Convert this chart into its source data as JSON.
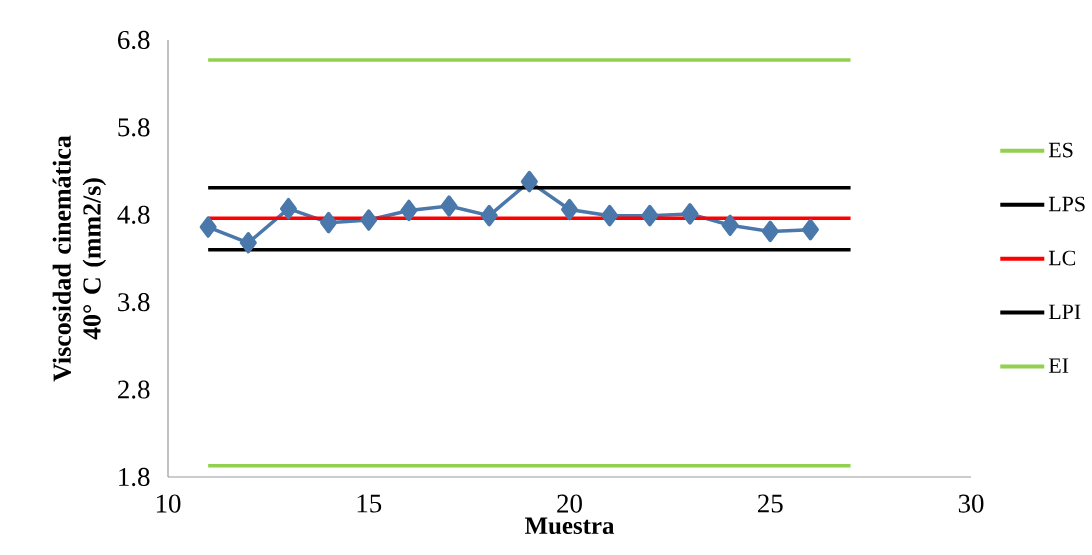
{
  "chart_data": {
    "type": "line",
    "xlabel": "Muestra",
    "ylabel": "Viscosidad cinemática 40° C (mm2/s)",
    "xlim": [
      10,
      30
    ],
    "xticks": [
      10,
      15,
      20,
      25,
      30
    ],
    "ylim": [
      1.8,
      6.8
    ],
    "yticks": [
      1.8,
      2.8,
      3.8,
      4.8,
      5.8,
      6.8
    ],
    "grid": false,
    "legend": "right",
    "line_style": "solid",
    "series": [
      {
        "color": "#4a78ab",
        "marker": "diamond",
        "x": [
          11,
          12,
          13,
          14,
          15,
          16,
          17,
          18,
          19,
          20,
          21,
          22,
          23,
          24,
          25,
          26
        ],
        "values": [
          4.66,
          4.48,
          4.87,
          4.71,
          4.74,
          4.85,
          4.9,
          4.79,
          5.18,
          4.86,
          4.79,
          4.79,
          4.81,
          4.68,
          4.61,
          4.63
        ]
      },
      {
        "name": "ES",
        "color": "#92d050",
        "marker": "none",
        "x": [
          11,
          27
        ],
        "values": [
          6.57,
          6.57
        ]
      },
      {
        "name": "LPS",
        "color": "#000000",
        "marker": "none",
        "x": [
          11,
          27
        ],
        "values": [
          5.11,
          5.11
        ]
      },
      {
        "name": "LC",
        "color": "#ff0000",
        "marker": "none",
        "x": [
          11,
          27
        ],
        "values": [
          4.76,
          4.76
        ]
      },
      {
        "name": "LPI",
        "color": "#000000",
        "marker": "none",
        "x": [
          11,
          27
        ],
        "values": [
          4.4,
          4.4
        ]
      },
      {
        "name": "EI",
        "color": "#92d050",
        "marker": "none",
        "x": [
          11,
          27
        ],
        "values": [
          1.93,
          1.93
        ]
      }
    ]
  }
}
